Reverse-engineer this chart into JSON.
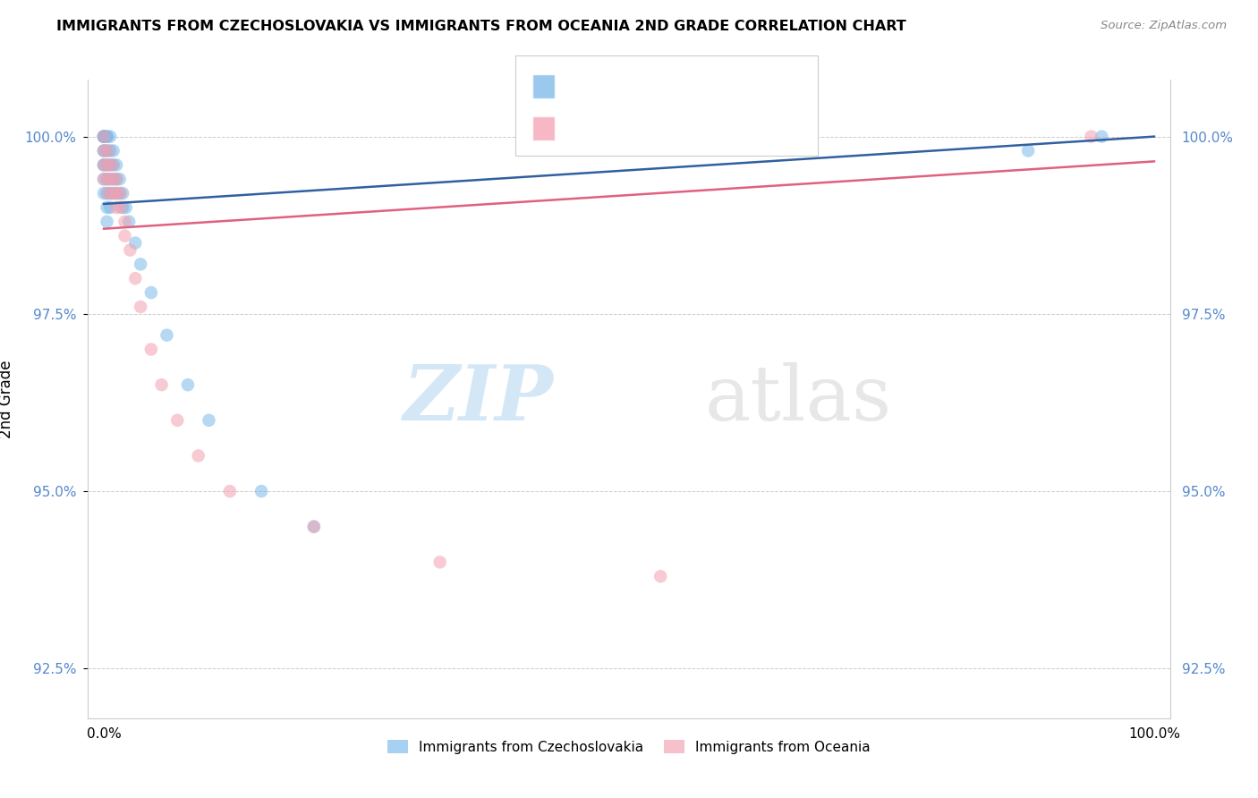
{
  "title": "IMMIGRANTS FROM CZECHOSLOVAKIA VS IMMIGRANTS FROM OCEANIA 2ND GRADE CORRELATION CHART",
  "source": "Source: ZipAtlas.com",
  "ylabel": "2nd Grade",
  "ytick_values": [
    92.5,
    95.0,
    97.5,
    100.0
  ],
  "ymin": 91.8,
  "ymax": 100.8,
  "xmin": -1.5,
  "xmax": 101.5,
  "blue_color": "#7ab8e8",
  "pink_color": "#f4a0b0",
  "blue_line_color": "#3060a0",
  "pink_line_color": "#e06080",
  "watermark_zip": "ZIP",
  "watermark_atlas": "atlas",
  "blue_scatter_x": [
    0.0,
    0.0,
    0.0,
    0.0,
    0.0,
    0.0,
    0.0,
    0.0,
    0.0,
    0.0,
    0.0,
    0.0,
    0.3,
    0.3,
    0.3,
    0.3,
    0.3,
    0.3,
    0.3,
    0.3,
    0.6,
    0.6,
    0.6,
    0.6,
    0.6,
    0.6,
    0.9,
    0.9,
    0.9,
    0.9,
    1.2,
    1.2,
    1.2,
    1.5,
    1.5,
    1.8,
    1.8,
    2.1,
    2.4,
    3.0,
    3.5,
    4.5,
    6.0,
    8.0,
    10.0,
    15.0,
    20.0,
    88.0,
    95.0
  ],
  "blue_scatter_y": [
    100.0,
    100.0,
    100.0,
    100.0,
    100.0,
    100.0,
    99.8,
    99.8,
    99.6,
    99.6,
    99.4,
    99.2,
    100.0,
    100.0,
    99.8,
    99.6,
    99.4,
    99.2,
    99.0,
    98.8,
    100.0,
    99.8,
    99.6,
    99.4,
    99.2,
    99.0,
    99.8,
    99.6,
    99.4,
    99.2,
    99.6,
    99.4,
    99.2,
    99.4,
    99.2,
    99.2,
    99.0,
    99.0,
    98.8,
    98.5,
    98.2,
    97.8,
    97.2,
    96.5,
    96.0,
    95.0,
    94.5,
    99.8,
    100.0
  ],
  "pink_scatter_x": [
    0.0,
    0.0,
    0.0,
    0.0,
    0.4,
    0.4,
    0.4,
    0.4,
    0.8,
    0.8,
    0.8,
    1.2,
    1.2,
    1.2,
    1.6,
    1.6,
    2.0,
    2.0,
    2.5,
    3.0,
    3.5,
    4.5,
    5.5,
    7.0,
    9.0,
    12.0,
    20.0,
    32.0,
    53.0,
    94.0
  ],
  "pink_scatter_y": [
    100.0,
    99.8,
    99.6,
    99.4,
    99.8,
    99.6,
    99.4,
    99.2,
    99.6,
    99.4,
    99.2,
    99.4,
    99.2,
    99.0,
    99.2,
    99.0,
    98.8,
    98.6,
    98.4,
    98.0,
    97.6,
    97.0,
    96.5,
    96.0,
    95.5,
    95.0,
    94.5,
    94.0,
    93.8,
    100.0
  ]
}
